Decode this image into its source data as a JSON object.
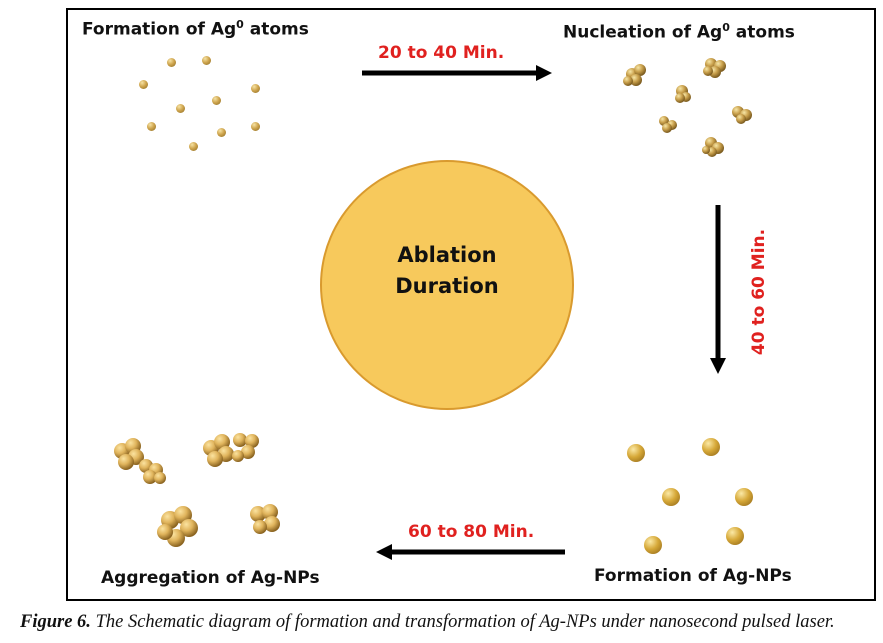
{
  "stages": {
    "formation_atoms": {
      "text": "Formation of Ag",
      "sup": "0",
      "suffix": " atoms"
    },
    "nucleation_atoms": {
      "text": "Nucleation of Ag",
      "sup": "0",
      "suffix": " atoms"
    },
    "formation_nps": "Formation of Ag-NPs",
    "aggregation_nps": "Aggregation of Ag-NPs"
  },
  "durations": {
    "d1": "20 to 40 Min.",
    "d2": "40 to 60 Min.",
    "d3": "60 to 80 Min."
  },
  "center": {
    "line1": "Ablation",
    "line2": "Duration"
  },
  "caption": {
    "label": "Figure 6.",
    "text": " The Schematic diagram of formation and transformation of Ag-NPs under nanosecond pulsed laser."
  },
  "colors": {
    "time_text": "#e0211f",
    "circle_fill": "#f7c95c",
    "particle": "#cfa54e"
  }
}
